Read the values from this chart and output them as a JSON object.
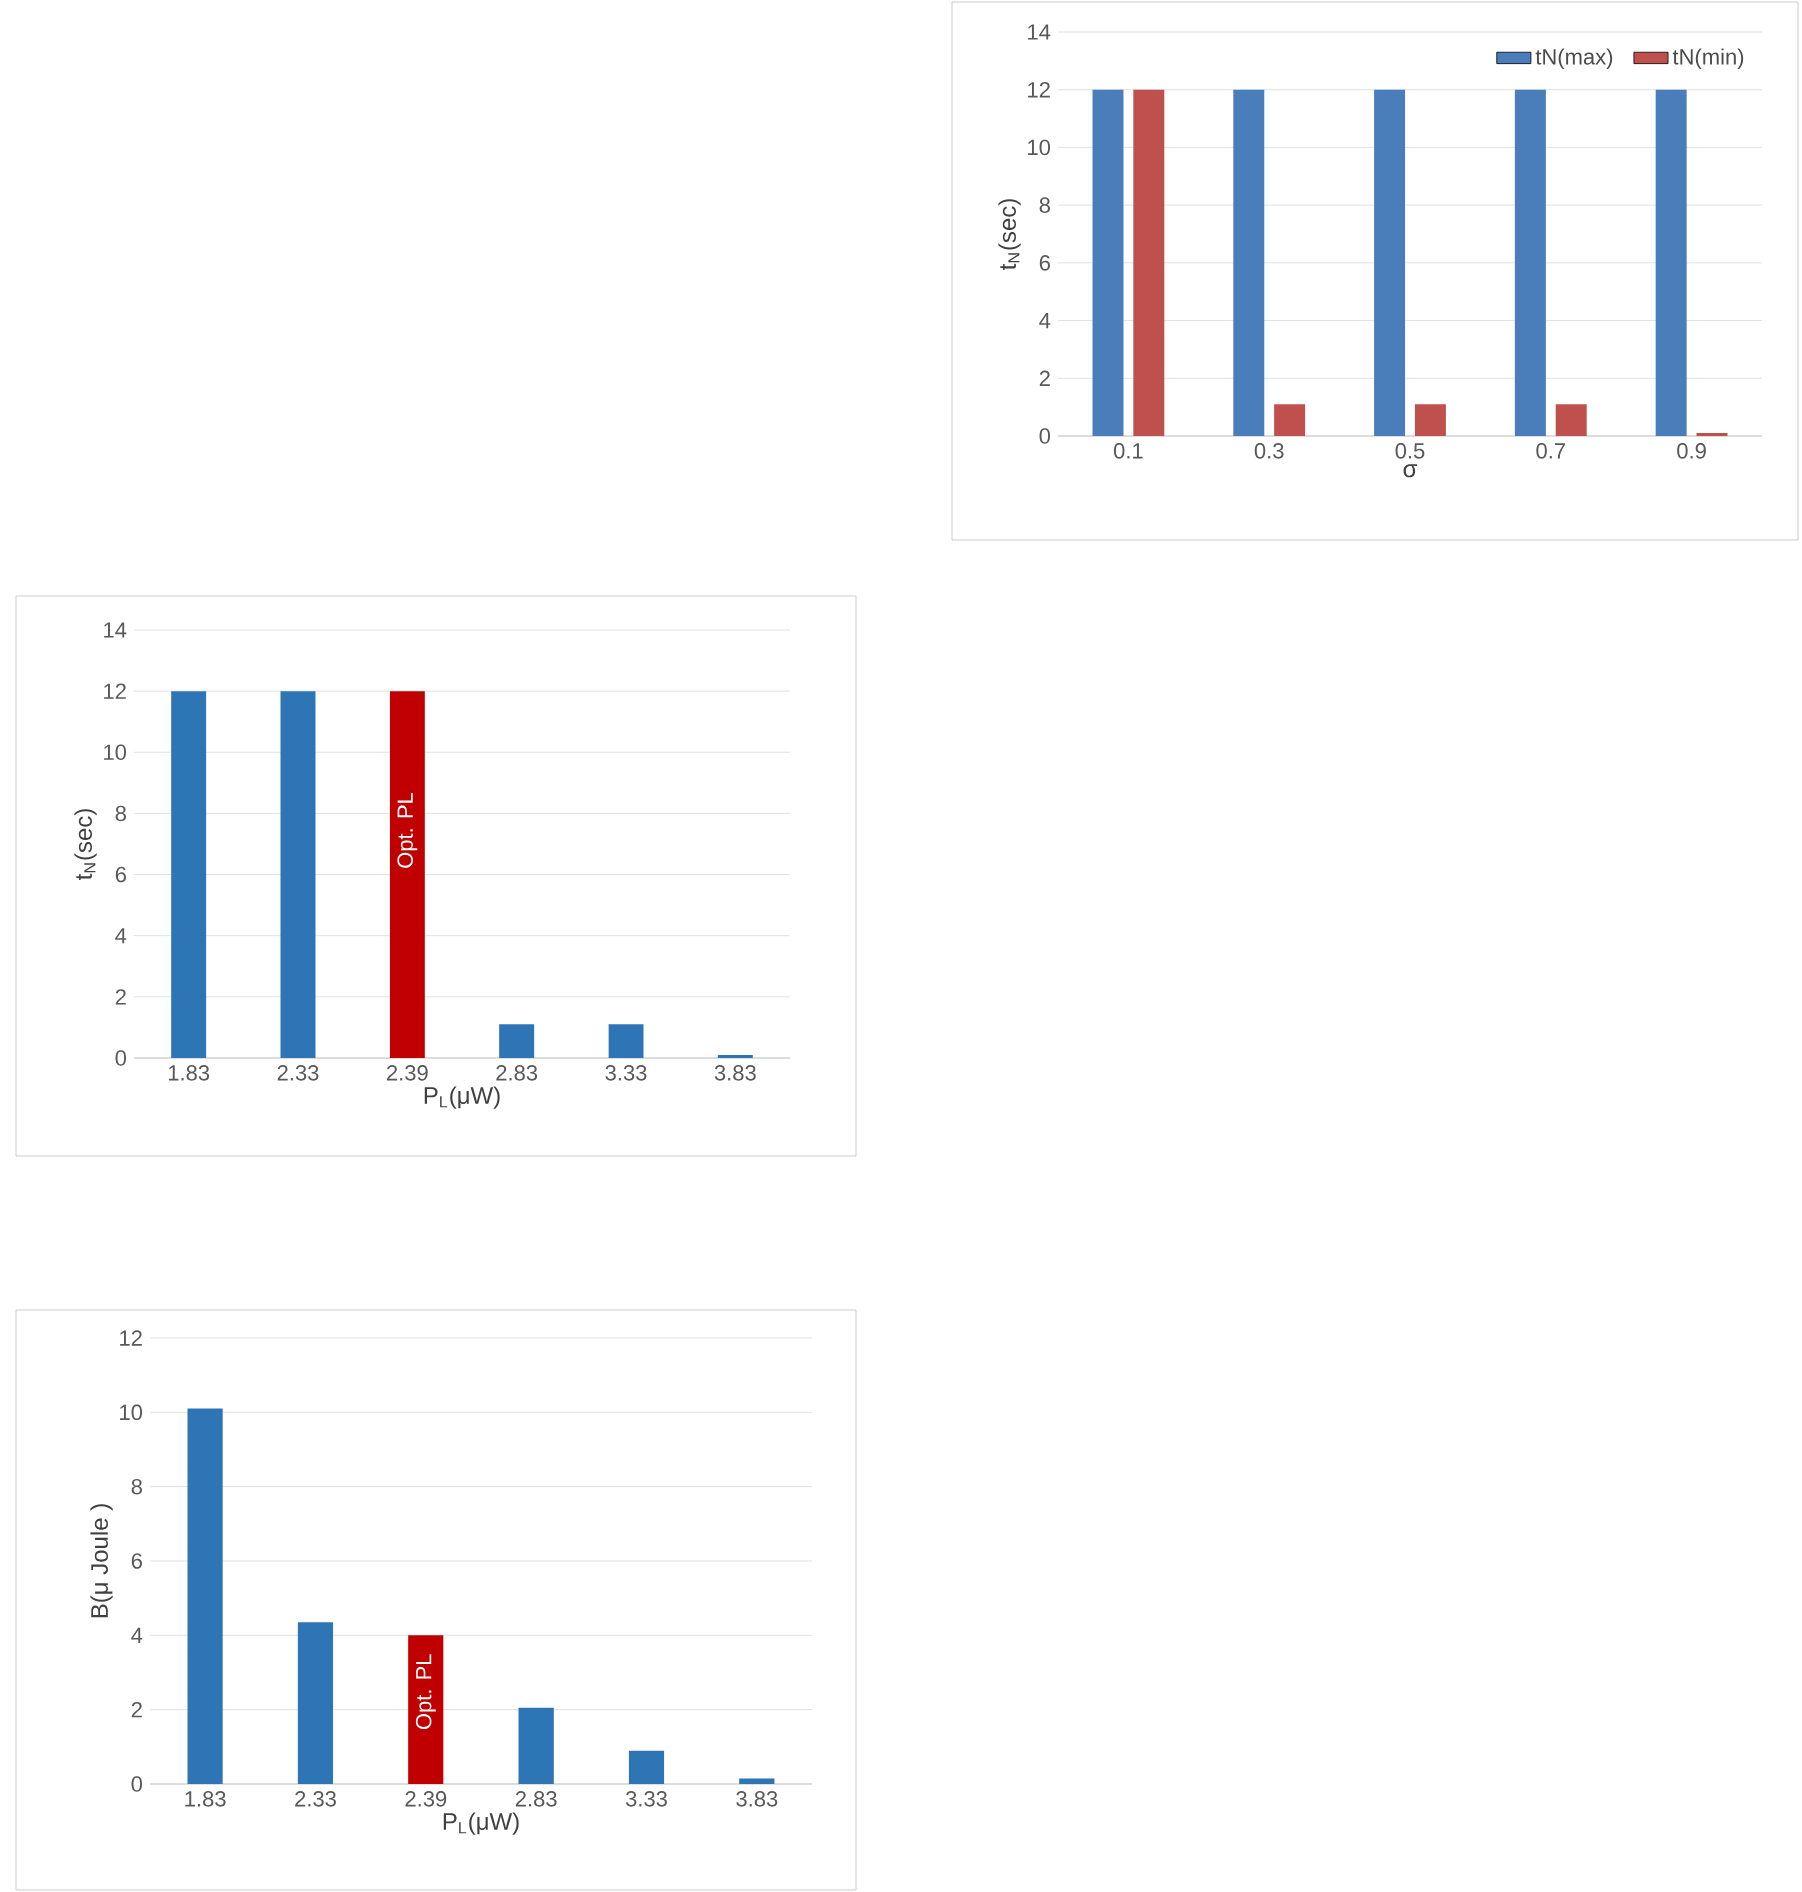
{
  "chart_data": [
    {
      "type": "bar",
      "categories": [
        "0.1",
        "0.3",
        "0.5",
        "0.7",
        "0.9"
      ],
      "xlabel": "σ",
      "ylabel": "t$_{N}$(sec)",
      "ylim": [
        0,
        14
      ],
      "yticks": [
        0,
        2,
        4,
        6,
        8,
        10,
        12,
        14
      ],
      "grid": "y",
      "legend": "top right",
      "series": [
        {
          "name": "tN(max)",
          "color": "#4a7ebb",
          "values": [
            12,
            12,
            12,
            12,
            12
          ]
        },
        {
          "name": "tN(min)",
          "color": "#c0504d",
          "values": [
            12,
            1.1,
            1.1,
            1.1,
            0.1
          ]
        }
      ]
    },
    {
      "type": "bar",
      "categories": [
        "1.83",
        "2.33",
        "2.39",
        "2.83",
        "3.33",
        "3.83"
      ],
      "xlabel": "P$_{L}$(μW)",
      "ylabel": "t$_{N}$(sec)",
      "ylim": [
        0,
        14
      ],
      "yticks": [
        0,
        2,
        4,
        6,
        8,
        10,
        12,
        14
      ],
      "grid": "y",
      "values": [
        12,
        12,
        12,
        1.1,
        1.1,
        0.1
      ],
      "colors": [
        "#2e75b6",
        "#2e75b6",
        "#c00000",
        "#2e75b6",
        "#2e75b6",
        "#2e75b6"
      ],
      "annotations": [
        "Opt. PL"
      ]
    },
    {
      "type": "bar",
      "categories": [
        "1.83",
        "2.33",
        "2.39",
        "2.83",
        "3.33",
        "3.83"
      ],
      "xlabel": "P$_{L}$(μW)",
      "ylabel": "B(μ Joule )",
      "ylim": [
        0,
        12
      ],
      "yticks": [
        0,
        2,
        4,
        6,
        8,
        10,
        12
      ],
      "grid": "y",
      "values": [
        10.1,
        4.35,
        4.0,
        2.05,
        0.9,
        0.15
      ],
      "colors": [
        "#2e75b6",
        "#2e75b6",
        "#c00000",
        "#2e75b6",
        "#2e75b6",
        "#2e75b6"
      ],
      "annotations": [
        "Opt. PL"
      ]
    }
  ]
}
